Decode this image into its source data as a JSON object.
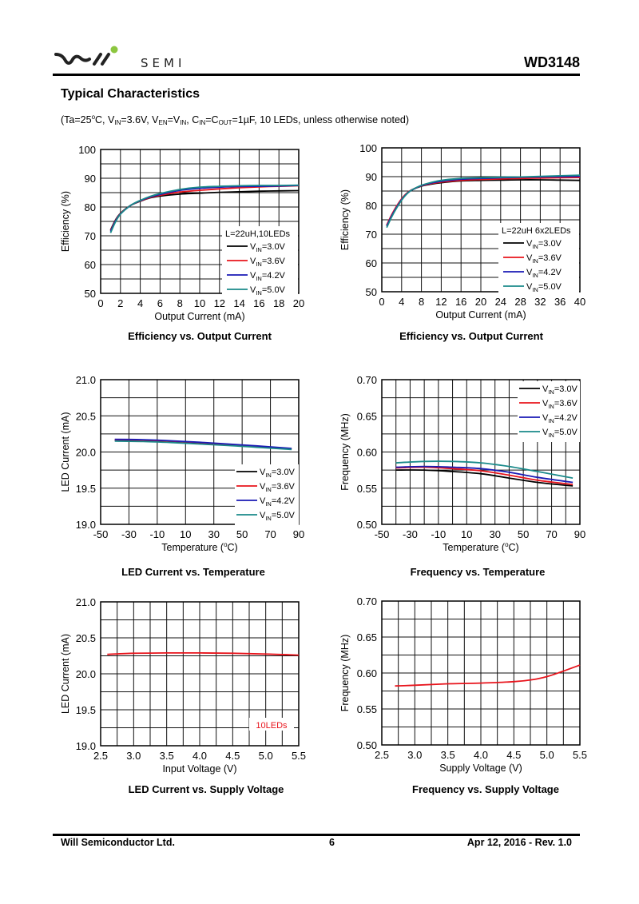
{
  "header": {
    "brand": "SEMI",
    "part_number": "WD3148"
  },
  "section": {
    "title": "Typical Characteristics",
    "conditions": {
      "p1": "(Ta=25",
      "deg": "o",
      "p2": "C, V",
      "sub1": "IN",
      "p3": "=3.6V, V",
      "sub2": "EN",
      "p4": "=V",
      "sub3": "IN",
      "p5": ", C",
      "sub4": "IN",
      "p6": "=C",
      "sub5": "OUT",
      "p7": "=1µF, 10 LEDs, unless otherwise noted)"
    }
  },
  "footer": {
    "company": "Will Semiconductor Ltd.",
    "page": "6",
    "date_rev": "Apr 12, 2016 - Rev. 1.0"
  },
  "colors": {
    "v30": "#000000",
    "v36": "#e8141c",
    "v42": "#1a1ab4",
    "v50": "#1a8a8a"
  },
  "chart_data": [
    {
      "id": "eff10",
      "type": "line",
      "title": "Efficiency vs. Output Current",
      "xlabel": "Output Current (mA)",
      "ylabel": "Efficiency (%)",
      "xlim": [
        0,
        20
      ],
      "ylim": [
        50,
        100
      ],
      "xticks": [
        0,
        2,
        4,
        6,
        8,
        10,
        12,
        14,
        16,
        18,
        20
      ],
      "yticks": [
        50,
        60,
        70,
        80,
        90,
        100
      ],
      "ygrid_minor": 5,
      "xtick_labels": [
        "0",
        "2",
        "4",
        "6",
        "8",
        "10",
        "12",
        "14",
        "16",
        "18",
        "20"
      ],
      "ytick_labels": [
        "50",
        "60",
        "70",
        "80",
        "90",
        "100"
      ],
      "legend": {
        "title": "L=22uH,10LEDs",
        "placement": "bottom-right"
      },
      "series": [
        {
          "name": "VIN=3.0V",
          "label_main": "V",
          "label_sub": "IN",
          "label_rest": "=3.0V",
          "color_key": "v30",
          "x": [
            1,
            1.5,
            2,
            3,
            4,
            5,
            6,
            8,
            10,
            12,
            14,
            16,
            18,
            20
          ],
          "y": [
            72,
            75.5,
            77.8,
            80.5,
            82,
            83.2,
            83.8,
            84.5,
            84.8,
            85.1,
            85.3,
            85.5,
            85.6,
            85.7
          ]
        },
        {
          "name": "VIN=3.6V",
          "label_main": "V",
          "label_sub": "IN",
          "label_rest": "=3.6V",
          "color_key": "v36",
          "x": [
            1,
            1.5,
            2,
            3,
            4,
            5,
            6,
            8,
            10,
            12,
            14,
            16,
            18,
            20
          ],
          "y": [
            71.8,
            75.3,
            77.7,
            80.5,
            82.1,
            83.3,
            84.1,
            85.2,
            85.8,
            86.3,
            86.7,
            87,
            87.2,
            87.4
          ]
        },
        {
          "name": "VIN=4.2V",
          "label_main": "V",
          "label_sub": "IN",
          "label_rest": "=4.2V",
          "color_key": "v42",
          "x": [
            1,
            1.5,
            2,
            3,
            4,
            5,
            6,
            8,
            10,
            12,
            14,
            16,
            18,
            20
          ],
          "y": [
            71.5,
            75.1,
            77.6,
            80.5,
            82.2,
            83.5,
            84.4,
            85.8,
            86.5,
            86.9,
            87.1,
            87.2,
            87.3,
            87.5
          ]
        },
        {
          "name": "VIN=5.0V",
          "label_main": "V",
          "label_sub": "IN",
          "label_rest": "=5.0V",
          "color_key": "v50",
          "x": [
            1,
            1.5,
            2,
            3,
            4,
            5,
            6,
            8,
            10,
            12,
            14,
            16,
            18,
            20
          ],
          "y": [
            71,
            74.8,
            77.5,
            80.5,
            82.3,
            83.7,
            84.7,
            86.1,
            86.9,
            87.2,
            87.4,
            87.5,
            87.5,
            87.6
          ]
        }
      ]
    },
    {
      "id": "eff12",
      "type": "line",
      "title": "Efficiency vs. Output Current",
      "xlabel": "Output Current (mA)",
      "ylabel": "Efficiency (%)",
      "xlim": [
        0,
        40
      ],
      "ylim": [
        50,
        100
      ],
      "xticks": [
        0,
        4,
        8,
        12,
        16,
        20,
        24,
        28,
        32,
        36,
        40
      ],
      "yticks": [
        50,
        60,
        70,
        80,
        90,
        100
      ],
      "ygrid_minor": 5,
      "xtick_labels": [
        "0",
        "4",
        "8",
        "12",
        "16",
        "20",
        "24",
        "28",
        "32",
        "36",
        "40"
      ],
      "ytick_labels": [
        "50",
        "60",
        "70",
        "80",
        "90",
        "100"
      ],
      "legend": {
        "title": "L=22uH 6x2LEDs",
        "placement": "bottom-right"
      },
      "series": [
        {
          "name": "VIN=3.0V",
          "label_main": "V",
          "label_sub": "IN",
          "label_rest": "=3.0V",
          "color_key": "v30",
          "x": [
            1,
            2,
            3,
            4,
            5,
            6,
            8,
            10,
            12,
            16,
            20,
            24,
            28,
            32,
            36,
            40
          ],
          "y": [
            73,
            76.5,
            79.5,
            82,
            84,
            85.3,
            86.7,
            87.4,
            87.9,
            88.5,
            88.7,
            88.8,
            88.9,
            88.9,
            88.8,
            88.7
          ]
        },
        {
          "name": "VIN=3.6V",
          "label_main": "V",
          "label_sub": "IN",
          "label_rest": "=3.6V",
          "color_key": "v36",
          "x": [
            1,
            2,
            3,
            4,
            5,
            6,
            8,
            10,
            12,
            16,
            20,
            24,
            28,
            32,
            36,
            40
          ],
          "y": [
            73.2,
            76.8,
            79.8,
            82.3,
            84.2,
            85.4,
            86.8,
            87.6,
            88.1,
            88.7,
            89,
            89.2,
            89.4,
            89.5,
            89.6,
            89.7
          ]
        },
        {
          "name": "VIN=4.2V",
          "label_main": "V",
          "label_sub": "IN",
          "label_rest": "=4.2V",
          "color_key": "v42",
          "x": [
            1,
            2,
            3,
            4,
            5,
            6,
            8,
            10,
            12,
            16,
            20,
            24,
            28,
            32,
            36,
            40
          ],
          "y": [
            72.8,
            76.4,
            79.4,
            82,
            84,
            85.3,
            86.9,
            87.8,
            88.4,
            89.1,
            89.4,
            89.6,
            89.8,
            89.9,
            90,
            90.1
          ]
        },
        {
          "name": "VIN=5.0V",
          "label_main": "V",
          "label_sub": "IN",
          "label_rest": "=5.0V",
          "color_key": "v50",
          "x": [
            1,
            2,
            3,
            4,
            5,
            6,
            8,
            10,
            12,
            16,
            20,
            24,
            28,
            32,
            36,
            40
          ],
          "y": [
            72.3,
            76,
            79.1,
            81.8,
            83.9,
            85.3,
            87,
            88,
            88.7,
            89.4,
            89.6,
            89.8,
            89.9,
            90.1,
            90.3,
            90.5
          ]
        }
      ]
    },
    {
      "id": "ledtemp",
      "type": "line",
      "title": "LED Current vs. Temperature",
      "xlabel": "Temperature (°C)",
      "xlabel_main": "Temperature (",
      "xlabel_sup": "o",
      "xlabel_rest": "C)",
      "ylabel": "LED Current (mA)",
      "xlim": [
        -50,
        90
      ],
      "ylim": [
        19.0,
        21.0
      ],
      "xticks": [
        -50,
        -30,
        -10,
        10,
        30,
        50,
        70,
        90
      ],
      "xgrid": [
        -50,
        -30,
        -10,
        10,
        30,
        50,
        70,
        90
      ],
      "yticks": [
        19.0,
        19.5,
        20.0,
        20.5,
        21.0
      ],
      "ygrid_minor": 0.25,
      "xtick_labels": [
        "-50",
        "-30",
        "-10",
        "10",
        "30",
        "50",
        "70",
        "90"
      ],
      "ytick_labels": [
        "19.0",
        "19.5",
        "20.0",
        "20.5",
        "21.0"
      ],
      "legend": {
        "title": "",
        "placement": "bottom-right"
      },
      "series": [
        {
          "name": "VIN=3.0V",
          "label_main": "V",
          "label_sub": "IN",
          "label_rest": "=3.0V",
          "color_key": "v30",
          "x": [
            -40,
            -20,
            0,
            20,
            40,
            60,
            85
          ],
          "y": [
            20.16,
            20.155,
            20.14,
            20.12,
            20.1,
            20.075,
            20.04
          ]
        },
        {
          "name": "VIN=3.6V",
          "label_main": "V",
          "label_sub": "IN",
          "label_rest": "=3.6V",
          "color_key": "v36",
          "x": [
            -40,
            -20,
            0,
            20,
            40,
            60,
            85
          ],
          "y": [
            20.17,
            20.165,
            20.15,
            20.13,
            20.105,
            20.08,
            20.045
          ]
        },
        {
          "name": "VIN=4.2V",
          "label_main": "V",
          "label_sub": "IN",
          "label_rest": "=4.2V",
          "color_key": "v42",
          "x": [
            -40,
            -20,
            0,
            20,
            40,
            60,
            85
          ],
          "y": [
            20.175,
            20.17,
            20.155,
            20.135,
            20.11,
            20.085,
            20.05
          ]
        },
        {
          "name": "VIN=5.0V",
          "label_main": "V",
          "label_sub": "IN",
          "label_rest": "=5.0V",
          "color_key": "v50",
          "x": [
            -40,
            -20,
            0,
            20,
            40,
            60,
            85
          ],
          "y": [
            20.15,
            20.145,
            20.13,
            20.11,
            20.09,
            20.065,
            20.035
          ]
        }
      ]
    },
    {
      "id": "freqtemp",
      "type": "line",
      "title": "Frequency vs. Temperature",
      "xlabel": "Temperature (°C)",
      "xlabel_main": "Temperature (",
      "xlabel_sup": "o",
      "xlabel_rest": "C)",
      "ylabel": "Frequency (MHz)",
      "xlim": [
        -50,
        90
      ],
      "ylim": [
        0.5,
        0.7
      ],
      "xticks": [
        -50,
        -30,
        -10,
        10,
        30,
        50,
        70,
        90
      ],
      "xgrid": [
        -50,
        -40,
        -30,
        -20,
        -10,
        0,
        10,
        20,
        30,
        40,
        50,
        60,
        70,
        80,
        90
      ],
      "yticks": [
        0.5,
        0.55,
        0.6,
        0.65,
        0.7
      ],
      "ygrid_minor": 0.025,
      "xtick_labels": [
        "-50",
        "-30",
        "-10",
        "10",
        "30",
        "50",
        "70",
        "90"
      ],
      "ytick_labels": [
        "0.50",
        "0.55",
        "0.60",
        "0.65",
        "0.70"
      ],
      "legend": {
        "title": "",
        "placement": "top-right"
      },
      "series": [
        {
          "name": "VIN=3.0V",
          "label_main": "V",
          "label_sub": "IN",
          "label_rest": "=3.0V",
          "color_key": "v30",
          "x": [
            -40,
            -20,
            0,
            20,
            40,
            60,
            85
          ],
          "y": [
            0.575,
            0.575,
            0.573,
            0.57,
            0.564,
            0.558,
            0.553
          ]
        },
        {
          "name": "VIN=3.6V",
          "label_main": "V",
          "label_sub": "IN",
          "label_rest": "=3.6V",
          "color_key": "v36",
          "x": [
            -40,
            -20,
            0,
            20,
            40,
            60,
            85
          ],
          "y": [
            0.578,
            0.579,
            0.577,
            0.574,
            0.568,
            0.561,
            0.555
          ]
        },
        {
          "name": "VIN=4.2V",
          "label_main": "V",
          "label_sub": "IN",
          "label_rest": "=4.2V",
          "color_key": "v42",
          "x": [
            -40,
            -20,
            0,
            20,
            40,
            60,
            85
          ],
          "y": [
            0.579,
            0.58,
            0.579,
            0.577,
            0.572,
            0.565,
            0.558
          ]
        },
        {
          "name": "VIN=5.0V",
          "label_main": "V",
          "label_sub": "IN",
          "label_rest": "=5.0V",
          "color_key": "v50",
          "x": [
            -40,
            -20,
            0,
            20,
            40,
            60,
            85
          ],
          "y": [
            0.585,
            0.587,
            0.587,
            0.585,
            0.58,
            0.573,
            0.564
          ]
        }
      ]
    },
    {
      "id": "ledvin",
      "type": "line",
      "title": "LED Current vs. Supply Voltage",
      "xlabel": "Input Voltage (V)",
      "ylabel": "LED Current (mA)",
      "xlim": [
        2.5,
        5.5
      ],
      "ylim": [
        19.0,
        21.0
      ],
      "xticks": [
        2.5,
        3.0,
        3.5,
        4.0,
        4.5,
        5.0,
        5.5
      ],
      "xgrid": [
        2.5,
        2.75,
        3.0,
        3.25,
        3.5,
        3.75,
        4.0,
        4.25,
        4.5,
        4.75,
        5.0,
        5.25,
        5.5
      ],
      "yticks": [
        19.0,
        19.5,
        20.0,
        20.5,
        21.0
      ],
      "ygrid_minor": 0.25,
      "xtick_labels": [
        "2.5",
        "3.0",
        "3.5",
        "4.0",
        "4.5",
        "5.0",
        "5.5"
      ],
      "ytick_labels": [
        "19.0",
        "19.5",
        "20.0",
        "20.5",
        "21.0"
      ],
      "annotation": "10LEDs",
      "series": [
        {
          "name": "10LEDs",
          "color_key": "v36",
          "x": [
            2.6,
            3.0,
            3.5,
            4.0,
            4.5,
            5.0,
            5.5
          ],
          "y": [
            20.27,
            20.285,
            20.29,
            20.29,
            20.285,
            20.275,
            20.26
          ]
        }
      ]
    },
    {
      "id": "freqvin",
      "type": "line",
      "title": "Frequency vs. Supply Voltage",
      "xlabel": "Supply Voltage (V)",
      "ylabel": "Frequency (MHz)",
      "xlim": [
        2.5,
        5.5
      ],
      "ylim": [
        0.5,
        0.7
      ],
      "xticks": [
        2.5,
        3.0,
        3.5,
        4.0,
        4.5,
        5.0,
        5.5
      ],
      "xgrid": [
        2.5,
        2.75,
        3.0,
        3.25,
        3.5,
        3.75,
        4.0,
        4.25,
        4.5,
        4.75,
        5.0,
        5.25,
        5.5
      ],
      "yticks": [
        0.5,
        0.55,
        0.6,
        0.65,
        0.7
      ],
      "ygrid_minor": 0.025,
      "xtick_labels": [
        "2.5",
        "3.0",
        "3.5",
        "4.0",
        "4.5",
        "5.0",
        "5.5"
      ],
      "ytick_labels": [
        "0.50",
        "0.55",
        "0.60",
        "0.65",
        "0.70"
      ],
      "series": [
        {
          "name": "Frequency",
          "color_key": "v36",
          "x": [
            2.7,
            3.0,
            3.5,
            4.0,
            4.5,
            4.8,
            5.0,
            5.2,
            5.5
          ],
          "y": [
            0.582,
            0.583,
            0.585,
            0.586,
            0.588,
            0.591,
            0.595,
            0.601,
            0.611
          ]
        }
      ]
    }
  ]
}
